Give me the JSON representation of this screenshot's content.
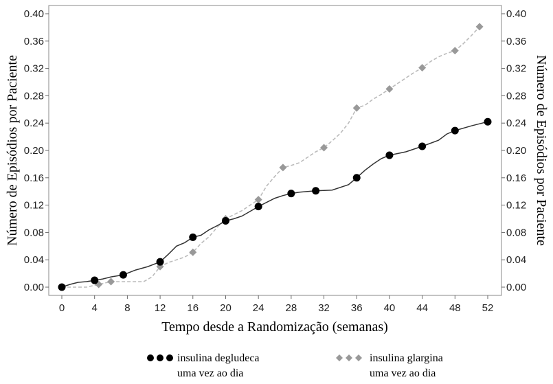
{
  "chart_data": {
    "type": "line",
    "title": "",
    "xlabel": "Tempo desde a Randomização (semanas)",
    "ylabel_left": "Número de Episódios por Paciente",
    "ylabel_right": "Número de Episódios por Paciente",
    "xlim": [
      0,
      52
    ],
    "ylim": [
      0,
      0.4
    ],
    "x_ticks": [
      "0",
      "4",
      "8",
      "12",
      "16",
      "20",
      "24",
      "28",
      "32",
      "36",
      "40",
      "44",
      "48",
      "52"
    ],
    "y_ticks": [
      "0.00",
      "0.04",
      "0.08",
      "0.12",
      "0.16",
      "0.20",
      "0.24",
      "0.28",
      "0.32",
      "0.36",
      "0.40"
    ],
    "grid": false,
    "legend_position": "bottom",
    "series": [
      {
        "name": "insulina degludeca uma vez ao dia",
        "legend_line1": "insulina degludeca",
        "legend_line2": "uma vez ao dia",
        "marker": "circle",
        "line_style": "solid",
        "color": "#000000",
        "line_color": "#333333",
        "points": [
          [
            0,
            0.0
          ],
          [
            4,
            0.01
          ],
          [
            7.5,
            0.018
          ],
          [
            12,
            0.037
          ],
          [
            16,
            0.073
          ],
          [
            20,
            0.097
          ],
          [
            24,
            0.118
          ],
          [
            28,
            0.137
          ],
          [
            31,
            0.141
          ],
          [
            36,
            0.16
          ],
          [
            40,
            0.193
          ],
          [
            44,
            0.206
          ],
          [
            48,
            0.229
          ],
          [
            52,
            0.242
          ]
        ],
        "curve": [
          [
            0,
            0.0
          ],
          [
            1,
            0.004
          ],
          [
            2,
            0.007
          ],
          [
            3,
            0.008
          ],
          [
            4,
            0.01
          ],
          [
            5,
            0.012
          ],
          [
            6,
            0.015
          ],
          [
            7.5,
            0.018
          ],
          [
            9,
            0.025
          ],
          [
            10.5,
            0.03
          ],
          [
            12,
            0.037
          ],
          [
            13,
            0.048
          ],
          [
            14,
            0.06
          ],
          [
            15,
            0.065
          ],
          [
            16,
            0.073
          ],
          [
            17,
            0.076
          ],
          [
            18,
            0.084
          ],
          [
            19,
            0.09
          ],
          [
            20,
            0.097
          ],
          [
            21,
            0.1
          ],
          [
            22,
            0.104
          ],
          [
            23,
            0.111
          ],
          [
            24,
            0.118
          ],
          [
            25,
            0.124
          ],
          [
            26,
            0.13
          ],
          [
            27,
            0.134
          ],
          [
            28,
            0.137
          ],
          [
            29,
            0.139
          ],
          [
            31,
            0.141
          ],
          [
            33,
            0.142
          ],
          [
            35,
            0.15
          ],
          [
            36,
            0.16
          ],
          [
            37,
            0.171
          ],
          [
            38,
            0.18
          ],
          [
            39,
            0.188
          ],
          [
            40,
            0.193
          ],
          [
            42,
            0.198
          ],
          [
            44,
            0.206
          ],
          [
            46,
            0.215
          ],
          [
            47,
            0.224
          ],
          [
            48,
            0.229
          ],
          [
            50,
            0.236
          ],
          [
            52,
            0.242
          ]
        ]
      },
      {
        "name": "insulina glargina uma vez ao dia",
        "legend_line1": "insulina glargina",
        "legend_line2": "uma vez ao dia",
        "marker": "diamond",
        "line_style": "dashed",
        "color": "#999999",
        "line_color": "#bbbbbb",
        "points": [
          [
            0,
            0.0
          ],
          [
            4.5,
            0.004
          ],
          [
            6,
            0.008
          ],
          [
            12,
            0.03
          ],
          [
            16,
            0.051
          ],
          [
            20,
            0.1
          ],
          [
            24,
            0.128
          ],
          [
            27,
            0.175
          ],
          [
            32,
            0.204
          ],
          [
            36,
            0.262
          ],
          [
            40,
            0.29
          ],
          [
            44,
            0.321
          ],
          [
            48,
            0.346
          ],
          [
            51,
            0.381
          ]
        ],
        "curve": [
          [
            0,
            0.0
          ],
          [
            3,
            0.0
          ],
          [
            4.5,
            0.004
          ],
          [
            6,
            0.008
          ],
          [
            8,
            0.008
          ],
          [
            10,
            0.008
          ],
          [
            11,
            0.015
          ],
          [
            12,
            0.03
          ],
          [
            13,
            0.036
          ],
          [
            14,
            0.04
          ],
          [
            15,
            0.044
          ],
          [
            16,
            0.051
          ],
          [
            17,
            0.064
          ],
          [
            18,
            0.074
          ],
          [
            19,
            0.088
          ],
          [
            20,
            0.1
          ],
          [
            21,
            0.106
          ],
          [
            22,
            0.112
          ],
          [
            23,
            0.12
          ],
          [
            24,
            0.128
          ],
          [
            25,
            0.148
          ],
          [
            26,
            0.162
          ],
          [
            27,
            0.175
          ],
          [
            28,
            0.178
          ],
          [
            29,
            0.182
          ],
          [
            30,
            0.19
          ],
          [
            31,
            0.198
          ],
          [
            32,
            0.204
          ],
          [
            33,
            0.214
          ],
          [
            34,
            0.225
          ],
          [
            35,
            0.24
          ],
          [
            36,
            0.262
          ],
          [
            37,
            0.266
          ],
          [
            38,
            0.275
          ],
          [
            39,
            0.282
          ],
          [
            40,
            0.29
          ],
          [
            41,
            0.298
          ],
          [
            42,
            0.306
          ],
          [
            43,
            0.314
          ],
          [
            44,
            0.321
          ],
          [
            45,
            0.33
          ],
          [
            46,
            0.337
          ],
          [
            47,
            0.342
          ],
          [
            48,
            0.346
          ],
          [
            49,
            0.356
          ],
          [
            50,
            0.368
          ],
          [
            51,
            0.381
          ]
        ]
      }
    ]
  }
}
